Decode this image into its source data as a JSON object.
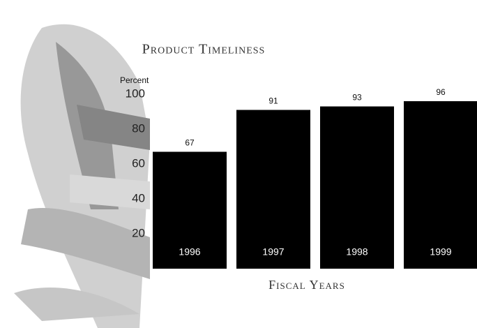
{
  "chart_data": {
    "type": "bar",
    "title": "Product Timeliness",
    "y_label": "Percent",
    "x_label": "Fiscal Years",
    "categories": [
      "1996",
      "1997",
      "1998",
      "1999"
    ],
    "values": [
      67,
      91,
      93,
      96
    ],
    "color": "#000000",
    "ylim": [
      0,
      100
    ],
    "yticks": [
      20,
      40,
      60,
      80,
      100
    ],
    "grid": false
  }
}
